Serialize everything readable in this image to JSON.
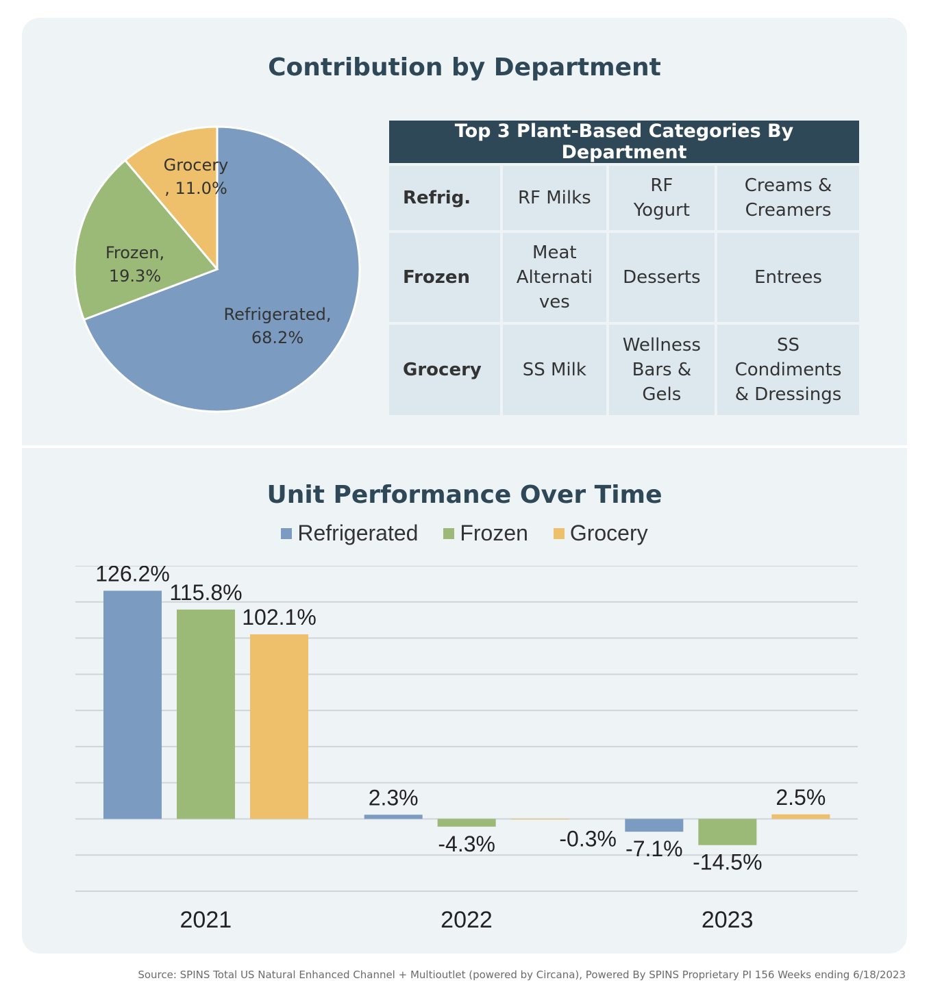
{
  "colors": {
    "refrigerated": "#7b9bc1",
    "frozen": "#9bba77",
    "grocery": "#eec06c",
    "header": "#2f4858",
    "panel": "#eef3f6"
  },
  "pie": {
    "title": "Contribution by Department",
    "chart_data": {
      "type": "pie",
      "slices": [
        {
          "label_line1": "Grocery",
          "label_line2": ", 11.0%",
          "value": 11.0,
          "color": "#eec06c"
        },
        {
          "label_line1": "Refrigerated,",
          "label_line2": "68.2%",
          "value": 68.2,
          "color": "#7b9bc1"
        },
        {
          "label_line1": "Frozen,",
          "label_line2": "19.3%",
          "value": 19.3,
          "color": "#9bba77"
        }
      ]
    }
  },
  "table": {
    "header": "Top 3 Plant-Based Categories By Department",
    "rows": [
      {
        "department": "Refrig.",
        "cells": [
          [
            "RF Milks"
          ],
          [
            "RF",
            "Yogurt"
          ],
          [
            "Creams &",
            "Creamers"
          ]
        ]
      },
      {
        "department": "Frozen",
        "cells": [
          [
            "Meat",
            "Alternati",
            "ves"
          ],
          [
            "Desserts"
          ],
          [
            "Entrees"
          ]
        ]
      },
      {
        "department": "Grocery",
        "cells": [
          [
            "SS Milk"
          ],
          [
            "Wellness",
            "Bars &",
            "Gels"
          ],
          [
            "SS",
            "Condiments",
            "& Dressings"
          ]
        ]
      }
    ]
  },
  "bars": {
    "title": "Unit Performance Over Time",
    "chart_data": {
      "type": "bar",
      "categories": [
        "2021",
        "2022",
        "2023"
      ],
      "series": [
        {
          "name": "Refrigerated",
          "color": "#7b9bc1",
          "values": [
            126.2,
            2.3,
            -7.1
          ],
          "labels": [
            "126.2%",
            "2.3%",
            "-7.1%"
          ]
        },
        {
          "name": "Frozen",
          "color": "#9bba77",
          "values": [
            115.8,
            -4.3,
            -14.5
          ],
          "labels": [
            "115.8%",
            "-4.3%",
            "-14.5%"
          ]
        },
        {
          "name": "Grocery",
          "color": "#eec06c",
          "values": [
            102.1,
            -0.3,
            2.5
          ],
          "labels": [
            "102.1%",
            "-0.3%",
            "2.5%"
          ]
        }
      ],
      "ylim": [
        -40,
        140
      ],
      "gridlines": true,
      "legend": "top-center"
    }
  },
  "source": "Source: SPINS Total US Natural Enhanced Channel + Multioutlet (powered by Circana), Powered By SPINS Proprietary PI 156 Weeks ending 6/18/2023"
}
